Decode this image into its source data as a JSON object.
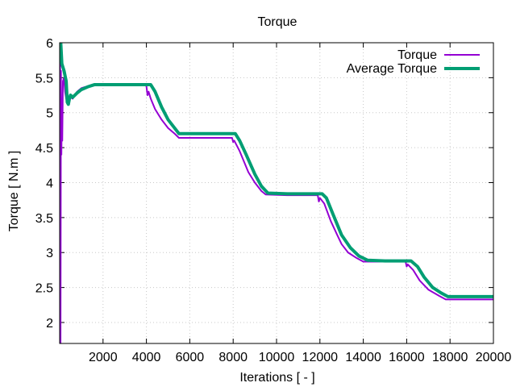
{
  "chart_data": {
    "type": "line",
    "title": "Torque",
    "xlabel": "Iterations [ - ]",
    "ylabel": "Torque [ N.m ]",
    "xlim": [
      0,
      20000
    ],
    "ylim": [
      1.7,
      6.0
    ],
    "xticks": [
      2000,
      4000,
      6000,
      8000,
      10000,
      12000,
      14000,
      16000,
      18000,
      20000
    ],
    "yticks": [
      2,
      2.5,
      3,
      3.5,
      4,
      4.5,
      5,
      5.5,
      6
    ],
    "grid": true,
    "legend_position": "top-right",
    "series": [
      {
        "name": "Torque",
        "color": "#9400d3",
        "points": [
          [
            0,
            1.7
          ],
          [
            20,
            6.0
          ],
          [
            40,
            1.7
          ],
          [
            60,
            5.6
          ],
          [
            80,
            4.4
          ],
          [
            100,
            5.0
          ],
          [
            120,
            4.6
          ],
          [
            150,
            5.45
          ],
          [
            200,
            5.5
          ],
          [
            250,
            5.3
          ],
          [
            300,
            5.2
          ],
          [
            350,
            5.15
          ],
          [
            400,
            5.18
          ],
          [
            500,
            5.22
          ],
          [
            600,
            5.2
          ],
          [
            700,
            5.25
          ],
          [
            800,
            5.3
          ],
          [
            1000,
            5.35
          ],
          [
            1300,
            5.38
          ],
          [
            1600,
            5.4
          ],
          [
            2000,
            5.4
          ],
          [
            3000,
            5.4
          ],
          [
            3900,
            5.4
          ],
          [
            4000,
            5.38
          ],
          [
            4050,
            5.25
          ],
          [
            4100,
            5.3
          ],
          [
            4200,
            5.2
          ],
          [
            4400,
            5.05
          ],
          [
            4700,
            4.9
          ],
          [
            5000,
            4.78
          ],
          [
            5300,
            4.7
          ],
          [
            5500,
            4.64
          ],
          [
            7000,
            4.64
          ],
          [
            7950,
            4.64
          ],
          [
            8000,
            4.58
          ],
          [
            8050,
            4.6
          ],
          [
            8300,
            4.45
          ],
          [
            8500,
            4.3
          ],
          [
            8700,
            4.15
          ],
          [
            9000,
            4.0
          ],
          [
            9300,
            3.88
          ],
          [
            9500,
            3.83
          ],
          [
            10500,
            3.82
          ],
          [
            11900,
            3.82
          ],
          [
            11950,
            3.73
          ],
          [
            12000,
            3.78
          ],
          [
            12200,
            3.7
          ],
          [
            12500,
            3.45
          ],
          [
            12800,
            3.25
          ],
          [
            13000,
            3.12
          ],
          [
            13300,
            3.0
          ],
          [
            13700,
            2.92
          ],
          [
            14000,
            2.87
          ],
          [
            15000,
            2.87
          ],
          [
            15950,
            2.87
          ],
          [
            16000,
            2.8
          ],
          [
            16050,
            2.83
          ],
          [
            16300,
            2.75
          ],
          [
            16600,
            2.6
          ],
          [
            17000,
            2.47
          ],
          [
            17500,
            2.38
          ],
          [
            17800,
            2.33
          ],
          [
            18500,
            2.33
          ],
          [
            20000,
            2.33
          ]
        ]
      },
      {
        "name": "Average Torque",
        "color": "#009e73",
        "points": [
          [
            0,
            6.0
          ],
          [
            50,
            6.0
          ],
          [
            100,
            5.7
          ],
          [
            200,
            5.6
          ],
          [
            300,
            5.45
          ],
          [
            350,
            5.15
          ],
          [
            400,
            5.12
          ],
          [
            450,
            5.2
          ],
          [
            500,
            5.25
          ],
          [
            600,
            5.22
          ],
          [
            800,
            5.28
          ],
          [
            1000,
            5.33
          ],
          [
            1300,
            5.37
          ],
          [
            1600,
            5.4
          ],
          [
            2000,
            5.4
          ],
          [
            3000,
            5.4
          ],
          [
            4200,
            5.4
          ],
          [
            4400,
            5.3
          ],
          [
            4700,
            5.08
          ],
          [
            5000,
            4.9
          ],
          [
            5300,
            4.78
          ],
          [
            5500,
            4.7
          ],
          [
            7000,
            4.7
          ],
          [
            8100,
            4.7
          ],
          [
            8300,
            4.6
          ],
          [
            8600,
            4.4
          ],
          [
            9000,
            4.12
          ],
          [
            9300,
            3.95
          ],
          [
            9600,
            3.85
          ],
          [
            10500,
            3.84
          ],
          [
            12100,
            3.84
          ],
          [
            12300,
            3.78
          ],
          [
            12600,
            3.55
          ],
          [
            13000,
            3.25
          ],
          [
            13400,
            3.07
          ],
          [
            13800,
            2.95
          ],
          [
            14200,
            2.89
          ],
          [
            15000,
            2.88
          ],
          [
            16200,
            2.88
          ],
          [
            16500,
            2.8
          ],
          [
            16800,
            2.65
          ],
          [
            17200,
            2.5
          ],
          [
            17600,
            2.42
          ],
          [
            17900,
            2.37
          ],
          [
            18500,
            2.37
          ],
          [
            20000,
            2.37
          ]
        ]
      }
    ]
  }
}
